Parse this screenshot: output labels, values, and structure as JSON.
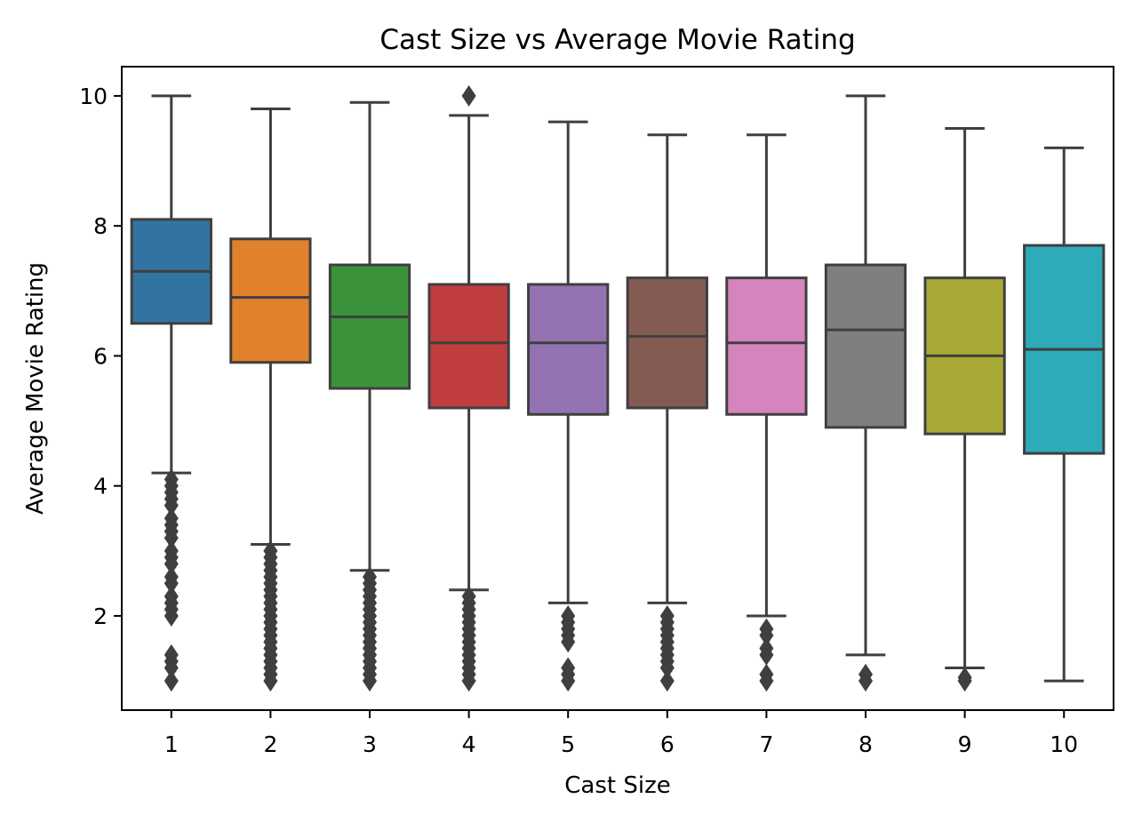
{
  "chart_data": {
    "type": "box",
    "title": "Cast Size vs Average Movie Rating",
    "xlabel": "Cast Size",
    "ylabel": "Average Movie Rating",
    "ylim": [
      0.55,
      10.45
    ],
    "yticks": [
      2,
      4,
      6,
      8,
      10
    ],
    "grid": false,
    "categories": [
      "1",
      "2",
      "3",
      "4",
      "5",
      "6",
      "7",
      "8",
      "9",
      "10"
    ],
    "boxes": [
      {
        "category": "1",
        "color": "#3274a1",
        "whisker_low": 4.2,
        "q1": 6.5,
        "median": 7.3,
        "q3": 8.1,
        "whisker_high": 10.0,
        "outliers": [
          4.1,
          4.0,
          3.9,
          3.8,
          3.7,
          3.5,
          3.4,
          3.3,
          3.2,
          3.0,
          2.9,
          2.8,
          2.6,
          2.5,
          2.3,
          2.2,
          2.1,
          2.0,
          1.4,
          1.3,
          1.2,
          1.0
        ]
      },
      {
        "category": "2",
        "color": "#e1812c",
        "whisker_low": 3.1,
        "q1": 5.9,
        "median": 6.9,
        "q3": 7.8,
        "whisker_high": 9.8,
        "outliers": [
          3.0,
          2.9,
          2.8,
          2.7,
          2.6,
          2.5,
          2.4,
          2.3,
          2.2,
          2.1,
          2.0,
          1.9,
          1.8,
          1.7,
          1.6,
          1.5,
          1.4,
          1.3,
          1.2,
          1.1,
          1.0
        ]
      },
      {
        "category": "3",
        "color": "#3a923a",
        "whisker_low": 2.7,
        "q1": 5.5,
        "median": 6.6,
        "q3": 7.4,
        "whisker_high": 9.9,
        "outliers": [
          2.6,
          2.5,
          2.4,
          2.3,
          2.2,
          2.1,
          2.0,
          1.9,
          1.8,
          1.7,
          1.6,
          1.5,
          1.4,
          1.3,
          1.2,
          1.1,
          1.0
        ]
      },
      {
        "category": "4",
        "color": "#c03d3e",
        "whisker_low": 2.4,
        "q1": 5.2,
        "median": 6.2,
        "q3": 7.1,
        "whisker_high": 9.7,
        "outliers": [
          10.0,
          2.3,
          2.2,
          2.1,
          2.0,
          1.9,
          1.8,
          1.7,
          1.6,
          1.5,
          1.4,
          1.3,
          1.2,
          1.1,
          1.0
        ]
      },
      {
        "category": "5",
        "color": "#9372b2",
        "whisker_low": 2.2,
        "q1": 5.1,
        "median": 6.2,
        "q3": 7.1,
        "whisker_high": 9.6,
        "outliers": [
          2.0,
          1.9,
          1.8,
          1.7,
          1.6,
          1.2,
          1.1,
          1.0
        ]
      },
      {
        "category": "6",
        "color": "#845b53",
        "whisker_low": 2.2,
        "q1": 5.2,
        "median": 6.3,
        "q3": 7.2,
        "whisker_high": 9.4,
        "outliers": [
          2.0,
          1.9,
          1.8,
          1.7,
          1.6,
          1.5,
          1.4,
          1.3,
          1.2,
          1.0
        ]
      },
      {
        "category": "7",
        "color": "#d684bd",
        "whisker_low": 2.0,
        "q1": 5.1,
        "median": 6.2,
        "q3": 7.2,
        "whisker_high": 9.4,
        "outliers": [
          1.8,
          1.7,
          1.5,
          1.4,
          1.1,
          1.0
        ]
      },
      {
        "category": "8",
        "color": "#7f7f7f",
        "whisker_low": 1.4,
        "q1": 4.9,
        "median": 6.4,
        "q3": 7.4,
        "whisker_high": 10.0,
        "outliers": [
          1.1,
          1.0
        ]
      },
      {
        "category": "9",
        "color": "#a9aa35",
        "whisker_low": 1.2,
        "q1": 4.8,
        "median": 6.0,
        "q3": 7.2,
        "whisker_high": 9.5,
        "outliers": [
          1.05,
          1.0
        ]
      },
      {
        "category": "10",
        "color": "#2eabb8",
        "whisker_low": 1.0,
        "q1": 4.5,
        "median": 6.1,
        "q3": 7.7,
        "whisker_high": 9.2,
        "outliers": []
      }
    ]
  }
}
